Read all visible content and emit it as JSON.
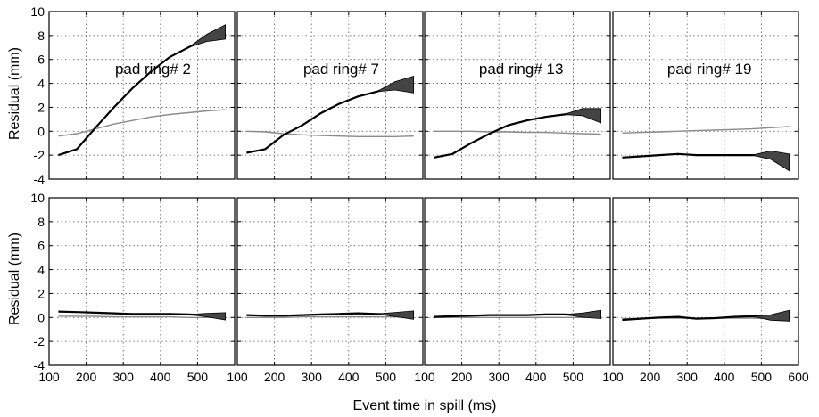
{
  "figure": {
    "xlabel": "Event time in spill (ms)",
    "ylabel": "Residual (mm)"
  },
  "colors": {
    "thick": "#000000",
    "thin": "#8a8a8a",
    "band": "#444444"
  },
  "chart_data": [
    {
      "type": "line",
      "title": "pad ring# 2",
      "row": "top",
      "xlim": [
        100,
        600
      ],
      "ylim": [
        -4,
        10
      ],
      "grid": true,
      "x": [
        125,
        175,
        225,
        275,
        325,
        375,
        425,
        475,
        525,
        575
      ],
      "series": [
        {
          "style": "thin",
          "values": [
            -0.4,
            -0.2,
            0.2,
            0.6,
            0.9,
            1.2,
            1.4,
            1.55,
            1.7,
            1.8
          ]
        },
        {
          "style": "thick",
          "values": [
            -2.0,
            -1.5,
            0.3,
            2.0,
            3.6,
            5.0,
            6.2,
            7.0,
            7.8,
            8.3
          ],
          "band_end": 0.6
        }
      ]
    },
    {
      "type": "line",
      "title": "pad ring# 7",
      "row": "top",
      "xlim": [
        100,
        600
      ],
      "ylim": [
        -4,
        10
      ],
      "grid": true,
      "x": [
        125,
        175,
        225,
        275,
        325,
        375,
        425,
        475,
        525,
        575
      ],
      "series": [
        {
          "style": "thin",
          "values": [
            0.0,
            -0.05,
            -0.2,
            -0.3,
            -0.35,
            -0.4,
            -0.45,
            -0.45,
            -0.45,
            -0.4
          ]
        },
        {
          "style": "thick",
          "values": [
            -1.8,
            -1.5,
            -0.3,
            0.5,
            1.5,
            2.3,
            2.9,
            3.3,
            3.8,
            3.9
          ],
          "band_end": 0.7
        }
      ]
    },
    {
      "type": "line",
      "title": "pad ring# 13",
      "row": "top",
      "xlim": [
        100,
        600
      ],
      "ylim": [
        -4,
        10
      ],
      "grid": true,
      "x": [
        125,
        175,
        225,
        275,
        325,
        375,
        425,
        475,
        525,
        575
      ],
      "series": [
        {
          "style": "thin",
          "values": [
            0.0,
            0.0,
            0.0,
            -0.05,
            -0.05,
            -0.1,
            -0.1,
            -0.15,
            -0.2,
            -0.25
          ]
        },
        {
          "style": "thick",
          "values": [
            -2.2,
            -1.9,
            -1.0,
            -0.2,
            0.5,
            0.9,
            1.2,
            1.4,
            1.6,
            1.3
          ],
          "band_end": 0.6
        }
      ]
    },
    {
      "type": "line",
      "title": "pad ring# 19",
      "row": "top",
      "xlim": [
        100,
        600
      ],
      "ylim": [
        -4,
        10
      ],
      "grid": true,
      "x": [
        125,
        175,
        225,
        275,
        325,
        375,
        425,
        475,
        525,
        575
      ],
      "series": [
        {
          "style": "thin",
          "values": [
            -0.15,
            -0.1,
            -0.05,
            0.0,
            0.05,
            0.1,
            0.15,
            0.2,
            0.3,
            0.4
          ]
        },
        {
          "style": "thick",
          "values": [
            -2.2,
            -2.1,
            -2.0,
            -1.9,
            -2.0,
            -2.0,
            -2.0,
            -2.0,
            -2.0,
            -2.6
          ],
          "band_end": 0.7
        }
      ]
    },
    {
      "type": "line",
      "title": "",
      "row": "bottom",
      "xlim": [
        100,
        600
      ],
      "ylim": [
        -4,
        10
      ],
      "grid": true,
      "x": [
        125,
        175,
        225,
        275,
        325,
        375,
        425,
        475,
        525,
        575
      ],
      "series": [
        {
          "style": "thin",
          "values": [
            0.1,
            0.1,
            0.1,
            0.05,
            0.05,
            0.05,
            0.05,
            0.0,
            0.0,
            0.0
          ]
        },
        {
          "style": "thick",
          "values": [
            0.5,
            0.45,
            0.4,
            0.35,
            0.3,
            0.3,
            0.3,
            0.25,
            0.2,
            0.1
          ],
          "band_end": 0.3
        }
      ]
    },
    {
      "type": "line",
      "title": "",
      "row": "bottom",
      "xlim": [
        100,
        600
      ],
      "ylim": [
        -4,
        10
      ],
      "grid": true,
      "x": [
        125,
        175,
        225,
        275,
        325,
        375,
        425,
        475,
        525,
        575
      ],
      "series": [
        {
          "style": "thin",
          "values": [
            0.0,
            0.0,
            0.0,
            0.05,
            0.05,
            0.05,
            0.05,
            0.05,
            0.05,
            0.05
          ]
        },
        {
          "style": "thick",
          "values": [
            0.2,
            0.15,
            0.15,
            0.2,
            0.25,
            0.3,
            0.35,
            0.3,
            0.25,
            0.2
          ],
          "band_end": 0.35
        }
      ]
    },
    {
      "type": "line",
      "title": "",
      "row": "bottom",
      "xlim": [
        100,
        600
      ],
      "ylim": [
        -4,
        10
      ],
      "grid": true,
      "x": [
        125,
        175,
        225,
        275,
        325,
        375,
        425,
        475,
        525,
        575
      ],
      "series": [
        {
          "style": "thin",
          "values": [
            0.0,
            0.0,
            0.0,
            0.0,
            0.0,
            0.0,
            0.0,
            0.0,
            0.0,
            0.0
          ]
        },
        {
          "style": "thick",
          "values": [
            0.05,
            0.1,
            0.15,
            0.2,
            0.2,
            0.2,
            0.25,
            0.25,
            0.2,
            0.25
          ],
          "band_end": 0.35
        }
      ]
    },
    {
      "type": "line",
      "title": "",
      "row": "bottom",
      "xlim": [
        100,
        600
      ],
      "ylim": [
        -4,
        10
      ],
      "grid": true,
      "x": [
        125,
        175,
        225,
        275,
        325,
        375,
        425,
        475,
        525,
        575
      ],
      "series": [
        {
          "style": "thin",
          "values": [
            -0.1,
            -0.1,
            -0.05,
            -0.05,
            -0.1,
            -0.05,
            -0.05,
            -0.05,
            -0.1,
            -0.1
          ]
        },
        {
          "style": "thick",
          "values": [
            -0.2,
            -0.1,
            0.0,
            0.05,
            -0.1,
            -0.05,
            0.05,
            0.1,
            0.0,
            0.15
          ],
          "band_end": 0.45
        }
      ]
    }
  ]
}
